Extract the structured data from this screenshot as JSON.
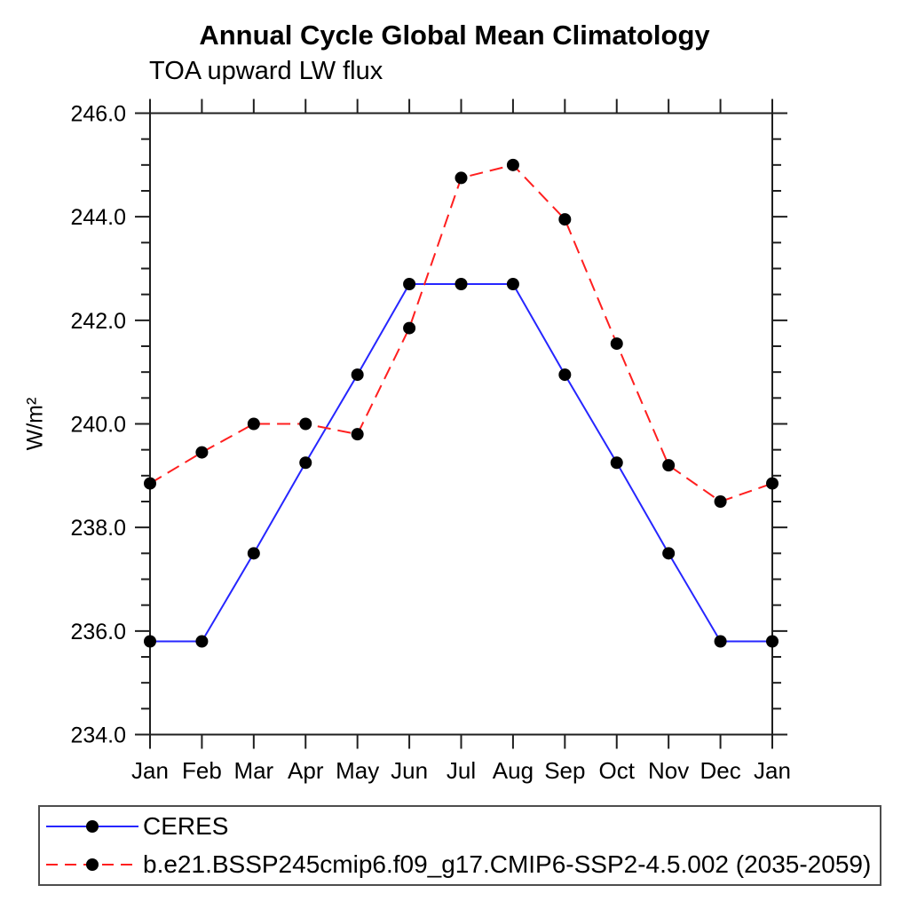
{
  "title": "Annual Cycle Global Mean Climatology",
  "subtitle": "TOA upward LW flux",
  "chart_data": {
    "type": "line",
    "x_categories": [
      "Jan",
      "Feb",
      "Mar",
      "Apr",
      "May",
      "Jun",
      "Jul",
      "Aug",
      "Sep",
      "Oct",
      "Nov",
      "Dec",
      "Jan"
    ],
    "xlabel": "",
    "ylabel": "W/m²",
    "ylim": [
      234.0,
      246.0
    ],
    "ytick_interval": 2.0,
    "ytick_minor_interval": 0.5,
    "ytick_labels": [
      "234.0",
      "236.0",
      "238.0",
      "240.0",
      "242.0",
      "244.0",
      "246.0"
    ],
    "grid": false,
    "legend_position": "bottom-left-box",
    "axis_color": "#1f1f1f",
    "text_color": "#000000",
    "marker": "filled-circle",
    "marker_color": "#000000",
    "series": [
      {
        "name": "CERES",
        "color": "#2626ff",
        "line_style": "solid",
        "values": [
          235.8,
          235.8,
          237.5,
          239.25,
          240.95,
          242.7,
          242.7,
          242.7,
          240.95,
          239.25,
          237.5,
          235.8,
          235.8
        ]
      },
      {
        "name": "b.e21.BSSP245cmip6.f09_g17.CMIP6-SSP2-4.5.002 (2035-2059)",
        "color": "#ff1f1f",
        "line_style": "dashed",
        "values": [
          238.85,
          239.45,
          240.0,
          240.0,
          239.8,
          241.85,
          244.75,
          245.0,
          243.95,
          241.55,
          239.2,
          238.5,
          238.85
        ]
      }
    ]
  }
}
